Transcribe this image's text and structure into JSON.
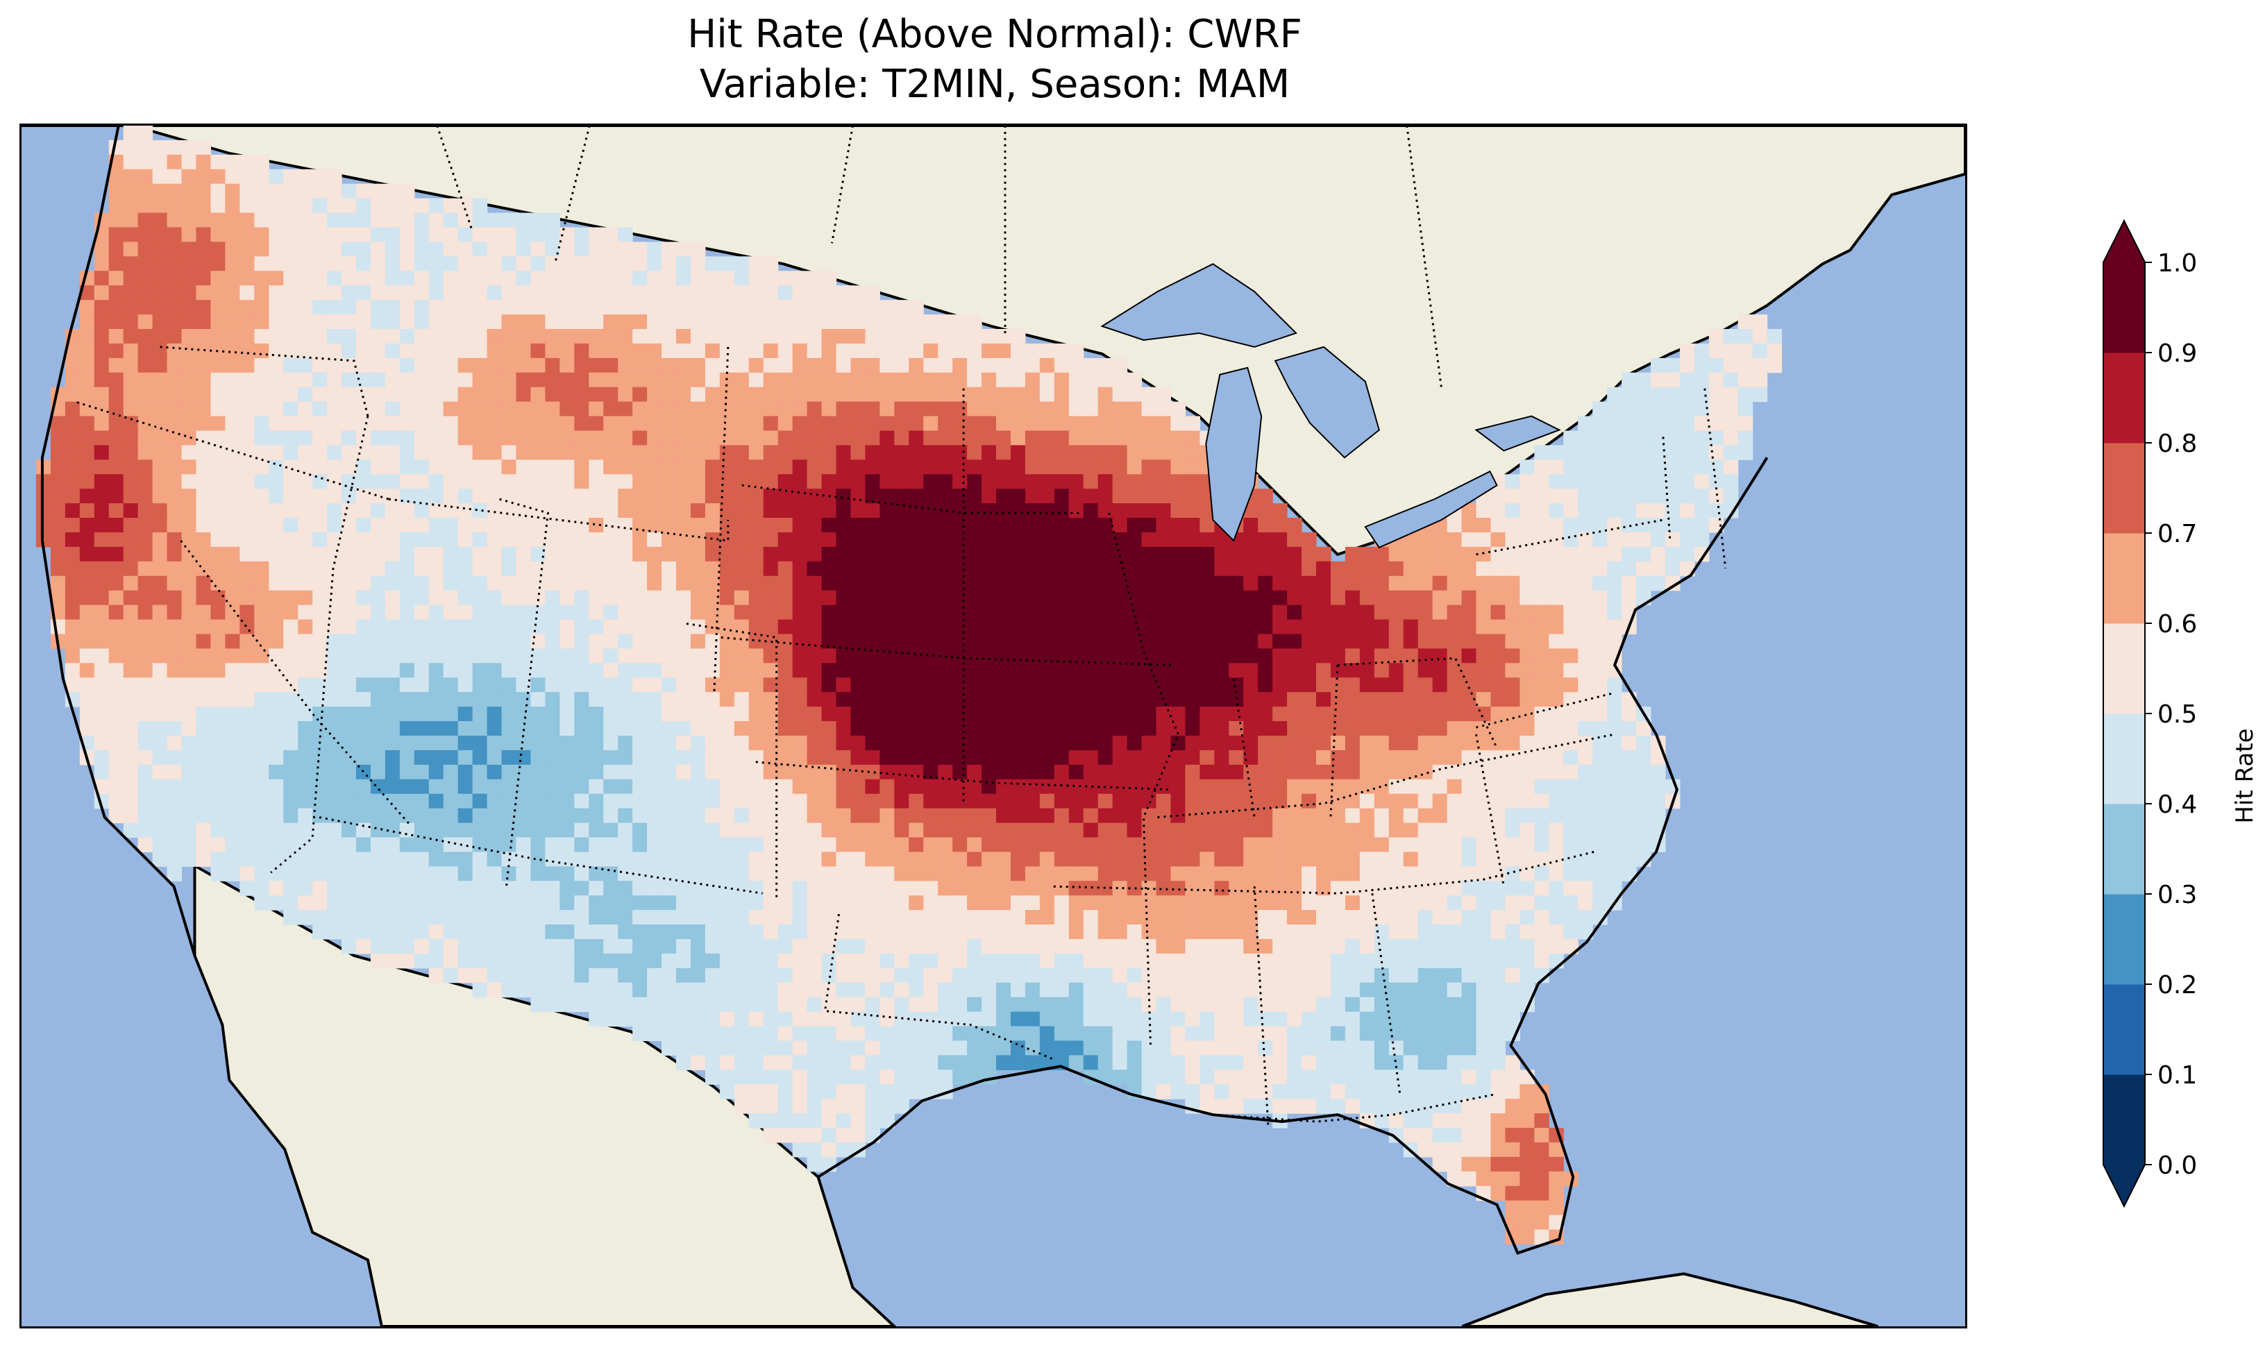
{
  "title": {
    "line1": "Hit Rate (Above Normal): CWRF",
    "line2": "Variable: T2MIN, Season: MAM"
  },
  "map": {
    "ocean_color": "#97b6e1",
    "land_color": "#efedde",
    "lake_color": "#97b6e1",
    "coastline_color": "#000000",
    "state_border_style": "dotted"
  },
  "colorbar": {
    "label": "Hit Rate",
    "ticks": [
      "0.0",
      "0.1",
      "0.2",
      "0.3",
      "0.4",
      "0.5",
      "0.6",
      "0.7",
      "0.8",
      "0.9",
      "1.0"
    ],
    "bins": [
      {
        "range": [
          0.0,
          0.1
        ],
        "color": "#053061"
      },
      {
        "range": [
          0.1,
          0.2
        ],
        "color": "#2166ac"
      },
      {
        "range": [
          0.2,
          0.3
        ],
        "color": "#4393c3"
      },
      {
        "range": [
          0.3,
          0.4
        ],
        "color": "#92c5de"
      },
      {
        "range": [
          0.4,
          0.5
        ],
        "color": "#d1e5f0"
      },
      {
        "range": [
          0.5,
          0.6
        ],
        "color": "#f7e4da"
      },
      {
        "range": [
          0.6,
          0.7
        ],
        "color": "#f4a582"
      },
      {
        "range": [
          0.7,
          0.8
        ],
        "color": "#d6604d"
      },
      {
        "range": [
          0.8,
          0.9
        ],
        "color": "#b2182b"
      },
      {
        "range": [
          0.9,
          1.0
        ],
        "color": "#67001f"
      }
    ],
    "extend": "both"
  }
}
